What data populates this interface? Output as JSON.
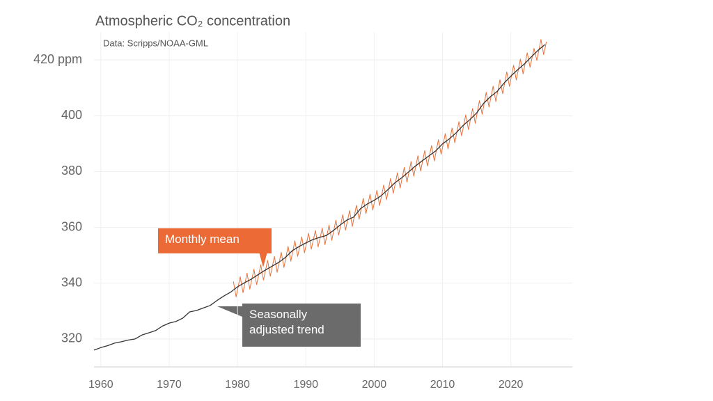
{
  "chart_data": {
    "type": "line",
    "title": "Atmospheric CO₂ concentration",
    "subtitle": "Data: Scripps/NOAA-GML",
    "xlim": [
      1959,
      2029
    ],
    "xticks": [
      1960,
      1970,
      1980,
      1990,
      2000,
      2010,
      2020
    ],
    "ylim": [
      310,
      430
    ],
    "yticks": [
      320,
      340,
      360,
      380,
      400,
      {
        "value": 420,
        "label": "420 ppm"
      }
    ],
    "grid": true,
    "series": [
      {
        "name": "Seasonally adjusted trend",
        "color": "#333333",
        "x": [
          1959,
          1960,
          1961,
          1962,
          1963,
          1964,
          1965,
          1966,
          1967,
          1968,
          1969,
          1970,
          1971,
          1972,
          1973,
          1974,
          1975,
          1976,
          1977,
          1978,
          1979,
          1980,
          1981,
          1982,
          1983,
          1984,
          1985,
          1986,
          1987,
          1988,
          1989,
          1990,
          1991,
          1992,
          1993,
          1994,
          1995,
          1996,
          1997,
          1998,
          1999,
          2000,
          2001,
          2002,
          2003,
          2004,
          2005,
          2006,
          2007,
          2008,
          2009,
          2010,
          2011,
          2012,
          2013,
          2014,
          2015,
          2016,
          2017,
          2018,
          2019,
          2020,
          2021,
          2022,
          2023,
          2024,
          2025
        ],
        "values": [
          316.0,
          316.9,
          317.6,
          318.5,
          319.0,
          319.6,
          320.0,
          321.4,
          322.2,
          323.0,
          324.6,
          325.7,
          326.3,
          327.5,
          329.7,
          330.2,
          331.1,
          332.0,
          333.8,
          335.4,
          336.8,
          338.7,
          340.1,
          341.4,
          343.0,
          344.6,
          346.0,
          347.4,
          349.2,
          351.6,
          353.1,
          354.4,
          355.6,
          356.4,
          357.1,
          358.8,
          360.8,
          362.6,
          363.7,
          366.7,
          368.4,
          369.7,
          371.3,
          373.5,
          375.9,
          377.7,
          379.8,
          381.9,
          383.8,
          385.6,
          387.4,
          389.9,
          391.7,
          393.9,
          396.5,
          398.6,
          401.0,
          404.4,
          406.8,
          408.7,
          411.7,
          414.2,
          416.5,
          418.6,
          421.1,
          423.5,
          425.5
        ]
      },
      {
        "name": "Monthly mean",
        "color": "#e8703a",
        "x": [
          1979.4,
          1979.8,
          1980.4,
          1980.8,
          1981.4,
          1981.8,
          1982.4,
          1982.8,
          1983.4,
          1983.8,
          1984.4,
          1984.8,
          1985.4,
          1985.8,
          1986.4,
          1986.8,
          1987.4,
          1987.8,
          1988.4,
          1988.8,
          1989.4,
          1989.8,
          1990.4,
          1990.8,
          1991.4,
          1991.8,
          1992.4,
          1992.8,
          1993.4,
          1993.8,
          1994.4,
          1994.8,
          1995.4,
          1995.8,
          1996.4,
          1996.8,
          1997.4,
          1997.8,
          1998.4,
          1998.8,
          1999.4,
          1999.8,
          2000.4,
          2000.8,
          2001.4,
          2001.8,
          2002.4,
          2002.8,
          2003.4,
          2003.8,
          2004.4,
          2004.8,
          2005.4,
          2005.8,
          2006.4,
          2006.8,
          2007.4,
          2007.8,
          2008.4,
          2008.8,
          2009.4,
          2009.8,
          2010.4,
          2010.8,
          2011.4,
          2011.8,
          2012.4,
          2012.8,
          2013.4,
          2013.8,
          2014.4,
          2014.8,
          2015.4,
          2015.8,
          2016.4,
          2016.8,
          2017.4,
          2017.8,
          2018.4,
          2018.8,
          2019.4,
          2019.8,
          2020.4,
          2020.8,
          2021.4,
          2021.8,
          2022.4,
          2022.8,
          2023.4,
          2023.8,
          2024.4,
          2024.8,
          2025.2
        ],
        "values": [
          340.6,
          335.1,
          342.3,
          336.6,
          343.6,
          337.9,
          345.0,
          339.5,
          346.6,
          341.1,
          348.2,
          342.5,
          349.6,
          343.9,
          351.1,
          345.6,
          353.2,
          347.9,
          355.2,
          349.6,
          356.6,
          350.9,
          357.9,
          352.2,
          358.9,
          353.0,
          359.7,
          353.8,
          360.8,
          355.3,
          362.6,
          357.2,
          364.5,
          359.0,
          366.0,
          360.3,
          367.9,
          362.9,
          370.4,
          364.9,
          371.9,
          366.2,
          373.3,
          367.8,
          375.2,
          369.9,
          377.5,
          372.2,
          379.6,
          374.1,
          381.5,
          376.2,
          383.6,
          378.3,
          385.7,
          380.2,
          387.5,
          382.0,
          389.3,
          383.8,
          391.4,
          386.2,
          393.6,
          388.1,
          395.6,
          390.3,
          397.9,
          392.8,
          400.3,
          395.0,
          402.6,
          397.3,
          405.4,
          400.5,
          408.4,
          403.1,
          410.6,
          405.1,
          412.9,
          407.9,
          415.7,
          410.5,
          418.1,
          412.8,
          420.3,
          415.0,
          422.6,
          417.4,
          424.1,
          419.8,
          427.3,
          421.9,
          426.5
        ]
      }
    ]
  }
}
